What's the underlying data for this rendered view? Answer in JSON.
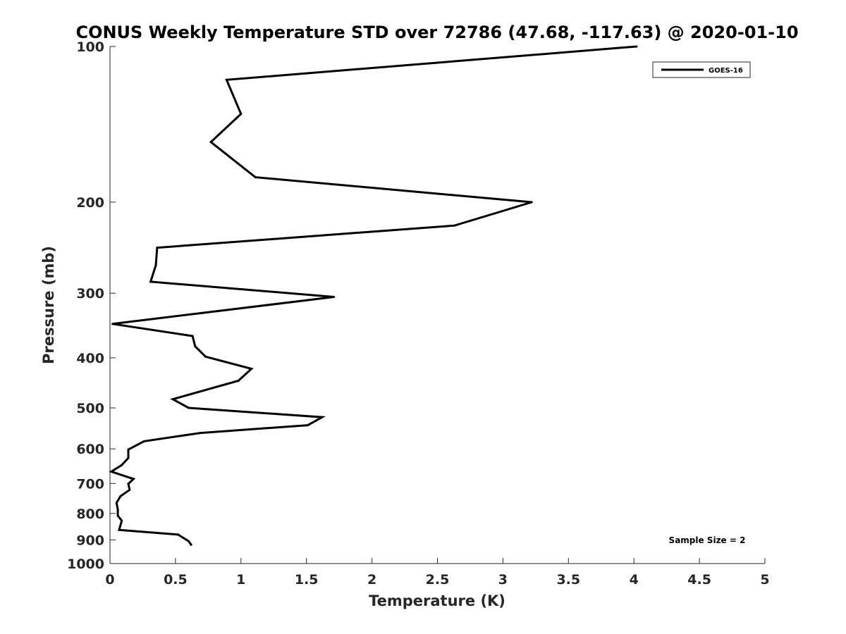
{
  "chart_data": {
    "type": "line",
    "title": "CONUS Weekly Temperature STD over 72786 (47.68, -117.63) @ 2020-01-10",
    "xlabel": "Temperature (K)",
    "ylabel": "Pressure (mb)",
    "xlim": [
      0,
      5
    ],
    "ylim": [
      100,
      1000
    ],
    "yscale": "log",
    "yaxis_reversed": true,
    "x_ticks": [
      "0",
      "0.5",
      "1",
      "1.5",
      "2",
      "2.5",
      "3",
      "3.5",
      "4",
      "4.5",
      "5"
    ],
    "y_ticks": [
      "100",
      "200",
      "300",
      "400",
      "500",
      "600",
      "700",
      "800",
      "900",
      "1000"
    ],
    "grid": false,
    "legend_position": "top-right",
    "annotation": "Sample Size = 2",
    "series": [
      {
        "name": "GOES-16",
        "color": "#000000",
        "points": [
          {
            "x": 4.02,
            "y": 100
          },
          {
            "x": 0.89,
            "y": 116
          },
          {
            "x": 1.0,
            "y": 135
          },
          {
            "x": 0.77,
            "y": 153
          },
          {
            "x": 1.11,
            "y": 179
          },
          {
            "x": 3.22,
            "y": 200
          },
          {
            "x": 2.63,
            "y": 222
          },
          {
            "x": 0.36,
            "y": 245
          },
          {
            "x": 0.35,
            "y": 265
          },
          {
            "x": 0.31,
            "y": 285
          },
          {
            "x": 1.71,
            "y": 305
          },
          {
            "x": 0.02,
            "y": 344
          },
          {
            "x": 0.63,
            "y": 363
          },
          {
            "x": 0.65,
            "y": 380
          },
          {
            "x": 0.73,
            "y": 398
          },
          {
            "x": 1.08,
            "y": 420
          },
          {
            "x": 0.98,
            "y": 443
          },
          {
            "x": 0.48,
            "y": 481
          },
          {
            "x": 0.6,
            "y": 500
          },
          {
            "x": 1.62,
            "y": 521
          },
          {
            "x": 1.51,
            "y": 540
          },
          {
            "x": 0.69,
            "y": 559
          },
          {
            "x": 0.26,
            "y": 580
          },
          {
            "x": 0.14,
            "y": 602
          },
          {
            "x": 0.14,
            "y": 625
          },
          {
            "x": 0.09,
            "y": 645
          },
          {
            "x": 0.01,
            "y": 664
          },
          {
            "x": 0.18,
            "y": 686
          },
          {
            "x": 0.14,
            "y": 701
          },
          {
            "x": 0.15,
            "y": 720
          },
          {
            "x": 0.08,
            "y": 741
          },
          {
            "x": 0.05,
            "y": 763
          },
          {
            "x": 0.06,
            "y": 786
          },
          {
            "x": 0.06,
            "y": 808
          },
          {
            "x": 0.09,
            "y": 826
          },
          {
            "x": 0.07,
            "y": 861
          },
          {
            "x": 0.52,
            "y": 879
          },
          {
            "x": 0.6,
            "y": 905
          },
          {
            "x": 0.62,
            "y": 920
          }
        ]
      }
    ]
  }
}
